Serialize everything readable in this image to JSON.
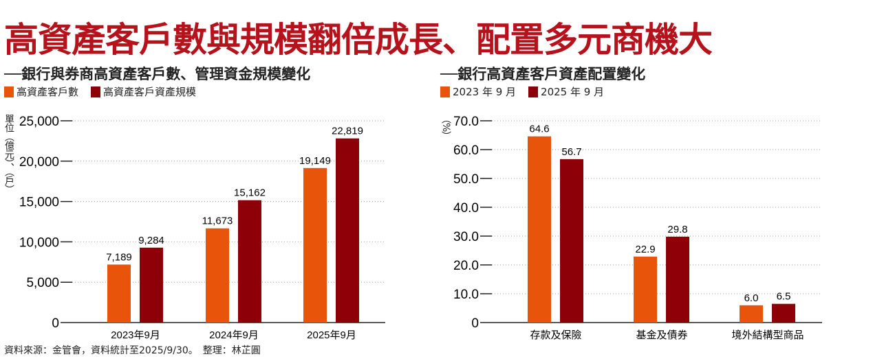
{
  "title": "高資產客戶數與規模翻倍成長、配置多元商機大",
  "source": "資料來源：金管會，資料統計至2025/9/30。　整理：林芷圓",
  "colors": {
    "orange": "#e8550a",
    "darkred": "#8e0008",
    "title": "#b5121b"
  },
  "chart_data": [
    {
      "type": "bar",
      "title": "──銀行與券商高資產客戶數、管理資金規模變化",
      "ylabel": "單位（億元）、（戶）",
      "ylim": [
        0,
        25000
      ],
      "yticks": [
        "0",
        "5,000",
        "10,000",
        "15,000",
        "20,000",
        "25,000"
      ],
      "ytick_values": [
        0,
        5000,
        10000,
        15000,
        20000,
        25000
      ],
      "categories": [
        "2023年9月",
        "2024年9月",
        "2025年9月"
      ],
      "series": [
        {
          "name": "高資產客戶數",
          "values": [
            7189,
            11673,
            19149
          ],
          "labels": [
            "7,189",
            "11,673",
            "19,149"
          ]
        },
        {
          "name": "高資產客戶資產規模",
          "values": [
            9284,
            15162,
            22819
          ],
          "labels": [
            "9,284",
            "15,162",
            "22,819"
          ]
        }
      ]
    },
    {
      "type": "bar",
      "title": "──銀行高資產客戶資產配置變化",
      "ylabel": "（%）",
      "ylim": [
        0,
        70
      ],
      "yticks": [
        "0",
        "10.0",
        "20.0",
        "30.0",
        "40.0",
        "50.0",
        "60.0",
        "70.0"
      ],
      "ytick_values": [
        0,
        10,
        20,
        30,
        40,
        50,
        60,
        70
      ],
      "categories": [
        "存款及保險",
        "基金及債券",
        "境外結構型商品"
      ],
      "series": [
        {
          "name": "2023 年 9 月",
          "values": [
            64.6,
            22.9,
            6.0
          ],
          "labels": [
            "64.6",
            "22.9",
            "6.0"
          ]
        },
        {
          "name": "2025 年 9 月",
          "values": [
            56.7,
            29.8,
            6.5
          ],
          "labels": [
            "56.7",
            "29.8",
            "6.5"
          ]
        }
      ]
    }
  ]
}
